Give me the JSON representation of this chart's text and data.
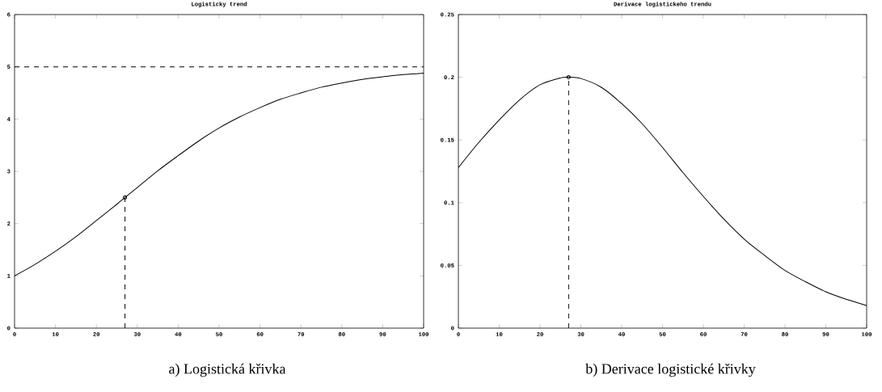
{
  "chart_data": [
    {
      "type": "line",
      "title": "Logisticky trend",
      "xlim": [
        0,
        100
      ],
      "xticks": [
        0,
        10,
        20,
        30,
        40,
        50,
        60,
        70,
        80,
        90,
        100
      ],
      "ylim": [
        0,
        6
      ],
      "yticks": [
        0,
        1,
        2,
        3,
        4,
        5,
        6
      ],
      "grid": false,
      "marker": "none",
      "line_style": "solid",
      "annotations": [
        "a) Logistická křivka"
      ],
      "ref_lines": [
        {
          "axis": "y",
          "value": 5,
          "line_style": "dashed",
          "color": "#000000"
        }
      ],
      "series": [
        {
          "color": "#000000",
          "x": [
            0,
            5,
            10,
            15,
            20,
            25,
            27,
            30,
            35,
            40,
            45,
            50,
            55,
            60,
            65,
            70,
            75,
            80,
            85,
            90,
            95,
            100
          ],
          "values": [
            1.0,
            1.22,
            1.47,
            1.75,
            2.06,
            2.37,
            2.5,
            2.69,
            3.01,
            3.3,
            3.58,
            3.83,
            4.04,
            4.22,
            4.38,
            4.5,
            4.61,
            4.69,
            4.76,
            4.81,
            4.85,
            4.88
          ]
        },
        {
          "type": "line",
          "line_style": "dashed",
          "color": "#000000",
          "x": [
            27,
            27
          ],
          "values": [
            0,
            2.5
          ]
        },
        {
          "type": "scatter",
          "marker": "circle",
          "color": "#000000",
          "x": [
            27
          ],
          "values": [
            2.5
          ]
        }
      ]
    },
    {
      "type": "line",
      "title": "Derivace logistickeho trendu",
      "xlim": [
        0,
        100
      ],
      "xticks": [
        0,
        10,
        20,
        30,
        40,
        50,
        60,
        70,
        80,
        90,
        100
      ],
      "ylim": [
        0,
        0.25
      ],
      "yticks": [
        0,
        0.05,
        0.1,
        0.15,
        0.2,
        0.25
      ],
      "grid": false,
      "marker": "none",
      "line_style": "solid",
      "annotations": [
        "b) Derivace logistické křivky"
      ],
      "series": [
        {
          "color": "#000000",
          "x": [
            0,
            5,
            10,
            15,
            20,
            25,
            27,
            30,
            35,
            40,
            45,
            50,
            55,
            60,
            65,
            70,
            75,
            80,
            85,
            90,
            95,
            100
          ],
          "values": [
            0.128,
            0.148,
            0.166,
            0.182,
            0.194,
            0.1995,
            0.2,
            0.199,
            0.192,
            0.179,
            0.163,
            0.144,
            0.124,
            0.105,
            0.087,
            0.071,
            0.058,
            0.046,
            0.037,
            0.029,
            0.023,
            0.018
          ]
        },
        {
          "type": "line",
          "line_style": "dashed",
          "color": "#000000",
          "x": [
            27,
            27
          ],
          "values": [
            0,
            0.2
          ]
        },
        {
          "type": "scatter",
          "marker": "circle",
          "color": "#000000",
          "x": [
            27
          ],
          "values": [
            0.2
          ]
        }
      ]
    }
  ]
}
